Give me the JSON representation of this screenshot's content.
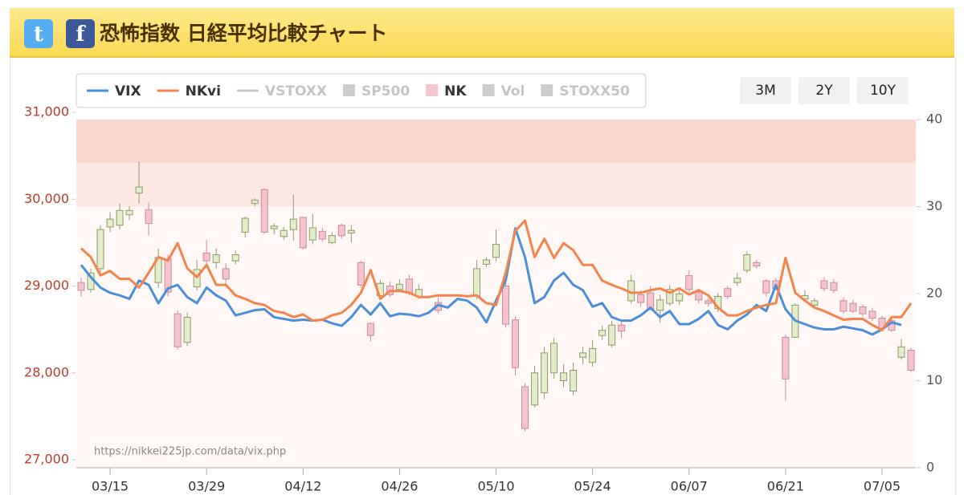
{
  "header": {
    "title": "恐怖指数 日経平均比較チャート"
  },
  "range_buttons": [
    "3M",
    "2Y",
    "10Y"
  ],
  "chart_data": {
    "type": "candlestick-lines",
    "source_note": "https://nikkei225jp.com/data/vix.php",
    "x": [
      "03/10",
      "03/11",
      "03/12",
      "03/15",
      "03/16",
      "03/17",
      "03/18",
      "03/19",
      "03/22",
      "03/23",
      "03/24",
      "03/25",
      "03/26",
      "03/29",
      "03/30",
      "03/31",
      "04/01",
      "04/02",
      "04/05",
      "04/06",
      "04/07",
      "04/08",
      "04/09",
      "04/12",
      "04/13",
      "04/14",
      "04/15",
      "04/16",
      "04/19",
      "04/20",
      "04/21",
      "04/22",
      "04/23",
      "04/26",
      "04/27",
      "04/28",
      "04/29",
      "04/30",
      "05/03",
      "05/04",
      "05/05",
      "05/06",
      "05/07",
      "05/10",
      "05/11",
      "05/12",
      "05/13",
      "05/14",
      "05/17",
      "05/18",
      "05/19",
      "05/20",
      "05/21",
      "05/24",
      "05/25",
      "05/26",
      "05/27",
      "05/28",
      "05/31",
      "06/01",
      "06/02",
      "06/03",
      "06/04",
      "06/07",
      "06/08",
      "06/09",
      "06/10",
      "06/11",
      "06/14",
      "06/15",
      "06/16",
      "06/17",
      "06/18",
      "06/21",
      "06/22",
      "06/23",
      "06/24",
      "06/25",
      "06/28",
      "06/29",
      "06/30",
      "07/01",
      "07/02",
      "07/05",
      "07/06",
      "07/07",
      "07/08"
    ],
    "xticks": [
      "03/15",
      "03/29",
      "04/12",
      "04/26",
      "05/10",
      "05/24",
      "06/07",
      "06/21",
      "07/05"
    ],
    "ylim": [
      27000,
      31000
    ],
    "yticks": [
      {
        "value": 27000,
        "label": "27,000"
      },
      {
        "value": 28000,
        "label": "28,000"
      },
      {
        "value": 29000,
        "label": "29,000"
      },
      {
        "value": 30000,
        "label": "30,000"
      },
      {
        "value": 31000,
        "label": "31,000"
      }
    ],
    "y2lim": [
      0,
      40
    ],
    "y2ticks": [
      0,
      10,
      20,
      30,
      40
    ],
    "bands": [
      {
        "from": 35,
        "to": 40,
        "color": "#fbd8cf"
      },
      {
        "from": 30,
        "to": 35,
        "color": "#fde8e3"
      },
      {
        "from": 0,
        "to": 30,
        "color": "#fff8f6"
      }
    ],
    "series": [
      {
        "name": "VIX",
        "color": "#4a8fd9",
        "symbol": "line",
        "active": true,
        "axis": "y2",
        "values": [
          23.3,
          21.9,
          20.7,
          20.1,
          19.8,
          19.4,
          21.5,
          21.0,
          18.9,
          20.6,
          21.0,
          19.6,
          18.9,
          20.7,
          19.8,
          19.2,
          17.5,
          17.8,
          18.1,
          18.2,
          17.3,
          17.1,
          16.9,
          17.0,
          16.9,
          17.0,
          16.6,
          16.3,
          17.3,
          18.7,
          17.6,
          18.9,
          17.4,
          17.7,
          17.6,
          17.4,
          17.8,
          18.7,
          18.4,
          19.4,
          19.2,
          18.4,
          16.7,
          19.2,
          21.5,
          27.5,
          24.2,
          18.9,
          19.6,
          21.5,
          22.4,
          21.0,
          20.4,
          18.5,
          18.9,
          17.3,
          16.9,
          16.9,
          17.5,
          18.4,
          17.3,
          18.0,
          16.5,
          16.5,
          17.1,
          18.0,
          16.4,
          15.9,
          16.9,
          17.6,
          18.7,
          18.0,
          21.0,
          18.2,
          16.9,
          16.5,
          16.1,
          15.9,
          15.9,
          16.2,
          16.0,
          15.8,
          15.3,
          15.9,
          16.7,
          16.4,
          null
        ]
      },
      {
        "name": "NKvi",
        "color": "#f5844c",
        "symbol": "line",
        "active": true,
        "axis": "y2",
        "values": [
          25.2,
          24.2,
          22.1,
          22.6,
          21.7,
          21.7,
          20.7,
          22.4,
          24.2,
          23.8,
          25.8,
          22.9,
          21.9,
          23.3,
          21.0,
          21.0,
          19.8,
          19.4,
          18.9,
          18.7,
          18.0,
          17.8,
          17.3,
          17.6,
          16.9,
          17.0,
          17.5,
          17.8,
          18.7,
          20.1,
          22.7,
          19.4,
          20.3,
          20.3,
          20.1,
          19.6,
          19.6,
          19.8,
          19.8,
          19.8,
          19.7,
          19.8,
          18.9,
          18.7,
          22.4,
          27.2,
          28.4,
          24.2,
          26.3,
          24.1,
          25.8,
          25.0,
          23.3,
          23.3,
          21.5,
          21.0,
          20.6,
          20.1,
          20.1,
          20.4,
          20.6,
          20.1,
          20.6,
          19.9,
          20.4,
          19.8,
          18.4,
          17.5,
          17.5,
          18.0,
          18.4,
          18.7,
          18.9,
          24.1,
          20.1,
          19.2,
          18.4,
          18.0,
          17.5,
          17.0,
          17.1,
          17.1,
          16.4,
          15.8,
          17.3,
          17.3,
          18.9
        ]
      },
      {
        "name": "VSTOXX",
        "color": "#cccccc",
        "symbol": "line",
        "active": false
      },
      {
        "name": "SP500",
        "color": "#cccccc",
        "symbol": "box",
        "active": false
      },
      {
        "name": "NK",
        "color": "#f7c5cf",
        "symbol": "box",
        "active": true,
        "up_color": "#e3edca",
        "up_stroke": "#8c9a6a",
        "down_color": "#f5c3cd",
        "down_stroke": "#c98a9b",
        "open": [
          29040,
          28960,
          29200,
          29680,
          29700,
          29820,
          30070,
          29880,
          29040,
          29310,
          28680,
          28350,
          28990,
          29380,
          29270,
          29200,
          29290,
          29620,
          29950,
          30110,
          29660,
          29570,
          29650,
          29790,
          29530,
          29630,
          29500,
          29700,
          29610,
          29270,
          28570,
          28890,
          29000,
          28960,
          29080,
          28880,
          null,
          28810,
          null,
          null,
          null,
          28880,
          29250,
          29330,
          29000,
          28610,
          27840,
          27630,
          27770,
          28000,
          27910,
          27790,
          28180,
          28120,
          28430,
          28320,
          28550,
          28830,
          28900,
          28920,
          28720,
          28800,
          28830,
          29120,
          28930,
          28830,
          28740,
          28970,
          29040,
          29180,
          29270,
          29060,
          29060,
          28410,
          28410,
          28850,
          28780,
          29060,
          29040,
          28830,
          28800,
          28760,
          28710,
          28630,
          28600,
          28180,
          28260
        ],
        "close": [
          28950,
          29150,
          29650,
          29770,
          29870,
          29870,
          30140,
          29720,
          29330,
          28930,
          28300,
          28640,
          29190,
          29290,
          29360,
          29080,
          29360,
          29780,
          29990,
          29620,
          29690,
          29640,
          29770,
          29440,
          29670,
          29540,
          29580,
          29580,
          29640,
          29010,
          28430,
          29030,
          28900,
          29020,
          28920,
          28960,
          null,
          28720,
          null,
          null,
          null,
          29200,
          29300,
          29480,
          28560,
          28060,
          27360,
          28000,
          28230,
          28340,
          28000,
          28030,
          28230,
          28280,
          28490,
          28550,
          28480,
          29060,
          28810,
          28740,
          28840,
          28960,
          28910,
          28960,
          28840,
          28800,
          28880,
          28880,
          29090,
          29360,
          29230,
          28920,
          28970,
          27930,
          28780,
          28890,
          28830,
          28970,
          28950,
          28710,
          28710,
          28680,
          28630,
          28510,
          28490,
          28300,
          28030
        ],
        "high": [
          29100,
          29200,
          29700,
          29850,
          29950,
          29920,
          30430,
          29960,
          29430,
          29360,
          28720,
          28700,
          29300,
          29530,
          29430,
          29260,
          29410,
          29800,
          30010,
          30120,
          29720,
          29680,
          30050,
          29800,
          29830,
          29670,
          29620,
          29720,
          29700,
          29290,
          28580,
          29070,
          29050,
          29080,
          29130,
          29020,
          null,
          28870,
          null,
          null,
          null,
          29300,
          29330,
          29650,
          29050,
          28650,
          27880,
          28080,
          28300,
          28400,
          28100,
          28120,
          28300,
          28380,
          28540,
          28600,
          28600,
          29130,
          28950,
          29000,
          28900,
          29010,
          28950,
          29180,
          28970,
          28860,
          28920,
          29000,
          29150,
          29400,
          29300,
          29080,
          29090,
          28440,
          28800,
          28950,
          28860,
          29100,
          29080,
          28870,
          28840,
          28790,
          28750,
          28660,
          28640,
          28390,
          28290
        ],
        "low": [
          28880,
          28920,
          29150,
          29620,
          29650,
          29760,
          29950,
          29580,
          28980,
          28880,
          28270,
          28310,
          28950,
          29250,
          29200,
          29020,
          29250,
          29560,
          29920,
          29600,
          29600,
          29530,
          29520,
          29420,
          29480,
          29510,
          29480,
          29540,
          29500,
          28980,
          28360,
          28860,
          28870,
          28930,
          28890,
          28850,
          null,
          28690,
          null,
          null,
          null,
          28850,
          29220,
          29290,
          28520,
          27970,
          27330,
          27600,
          27700,
          27930,
          27830,
          27740,
          28100,
          28070,
          28380,
          28290,
          28400,
          28800,
          28760,
          28720,
          28580,
          28770,
          28780,
          28930,
          28800,
          28760,
          28700,
          28850,
          29000,
          29150,
          29200,
          28880,
          28950,
          27680,
          28400,
          28820,
          28750,
          28940,
          28920,
          28680,
          28690,
          28650,
          28600,
          28480,
          28470,
          28150,
          28010
        ]
      },
      {
        "name": "Vol",
        "color": "#cccccc",
        "symbol": "box",
        "active": false
      },
      {
        "name": "STOXX50",
        "color": "#cccccc",
        "symbol": "box",
        "active": false
      }
    ]
  }
}
